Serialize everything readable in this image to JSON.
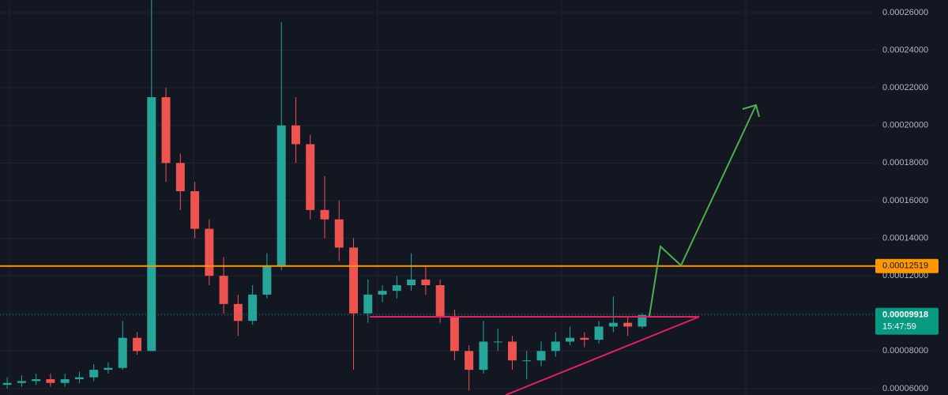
{
  "chart_data": {
    "type": "candlestick",
    "up_color": "#26a69a",
    "down_color": "#ef5350",
    "grid": true,
    "open": [
      6.2e-05,
      6.3e-05,
      6.4e-05,
      6.5e-05,
      6.3e-05,
      6.5e-05,
      6.6e-05,
      7e-05,
      7.1e-05,
      8.7e-05,
      8e-05,
      0.000215,
      0.00018,
      0.000165,
      0.000145,
      0.00012,
      0.000105,
      9.6e-05,
      0.00011,
      0.000125,
      0.0002,
      0.00019,
      0.000155,
      0.00015,
      0.000135,
      0.0001,
      0.00011,
      0.000112,
      0.000115,
      0.000118,
      0.000115,
      9.8e-05,
      8e-05,
      7e-05,
      8.5e-05,
      8.5e-05,
      7.5e-05,
      7.5e-05,
      8e-05,
      8.5e-05,
      8.7e-05,
      8.6e-05,
      9.3e-05,
      9.5e-05,
      9.3e-05
    ],
    "high": [
      6.6e-05,
      6.7e-05,
      6.8e-05,
      6.8e-05,
      6.8e-05,
      6.9e-05,
      7.3e-05,
      7.4e-05,
      9.6e-05,
      9e-05,
      0.000267,
      0.00022,
      0.000185,
      0.00017,
      0.00015,
      0.00013,
      0.00011,
      0.000115,
      0.000132,
      0.000255,
      0.000215,
      0.000195,
      0.000173,
      0.00016,
      0.00014,
      0.000118,
      0.000115,
      0.00012,
      0.000132,
      0.000125,
      0.000118,
      0.000102,
      8.3e-05,
      9.6e-05,
      9.2e-05,
      8.8e-05,
      8e-05,
      8.5e-05,
      9e-05,
      9.3e-05,
      9e-05,
      9.6e-05,
      0.000109,
      9.8e-05,
      0.0001
    ],
    "low": [
      6e-05,
      6.1e-05,
      6.2e-05,
      6.1e-05,
      6.1e-05,
      6.3e-05,
      6.4e-05,
      6.8e-05,
      7e-05,
      7.8e-05,
      8e-05,
      0.00017,
      0.000155,
      0.00014,
      0.000115,
      0.0001,
      8.8e-05,
      9.4e-05,
      0.000108,
      0.000123,
      0.00018,
      0.00015,
      0.00014,
      0.000128,
      7e-05,
      9.5e-05,
      0.000106,
      0.000108,
      0.000112,
      0.00011,
      9.5e-05,
      7.5e-05,
      5.9e-05,
      6.8e-05,
      8e-05,
      7e-05,
      6.5e-05,
      7.2e-05,
      7.7e-05,
      8.3e-05,
      8.2e-05,
      8.4e-05,
      9e-05,
      8.8e-05,
      9.2e-05
    ],
    "close": [
      6.3e-05,
      6.4e-05,
      6.5e-05,
      6.3e-05,
      6.5e-05,
      6.6e-05,
      7e-05,
      7.1e-05,
      8.7e-05,
      8e-05,
      0.000215,
      0.00018,
      0.000165,
      0.000145,
      0.00012,
      0.000105,
      9.6e-05,
      0.00011,
      0.000125,
      0.0002,
      0.00019,
      0.000155,
      0.00015,
      0.000135,
      0.0001,
      0.00011,
      0.000112,
      0.000115,
      0.000118,
      0.000115,
      9.8e-05,
      8e-05,
      7e-05,
      8.5e-05,
      8.5e-05,
      7.5e-05,
      7.5e-05,
      8e-05,
      8.5e-05,
      8.7e-05,
      8.6e-05,
      9.3e-05,
      9.5e-05,
      9.3e-05,
      9.918e-05
    ],
    "ylim": [
      5.66e-05,
      0.0002667
    ],
    "yticks": [
      {
        "value": 6e-05,
        "label": "0.00006000"
      },
      {
        "value": 8e-05,
        "label": "0.00008000"
      },
      {
        "value": 0.0001,
        "label": "0.00010000"
      },
      {
        "value": 0.00012,
        "label": "0.00012000"
      },
      {
        "value": 0.00014,
        "label": "0.00014000"
      },
      {
        "value": 0.00016,
        "label": "0.00016000"
      },
      {
        "value": 0.00018,
        "label": "0.00018000"
      },
      {
        "value": 0.0002,
        "label": "0.00020000"
      },
      {
        "value": 0.00022,
        "label": "0.00022000"
      },
      {
        "value": 0.00024,
        "label": "0.00024000"
      },
      {
        "value": 0.00026,
        "label": "0.00026000"
      }
    ],
    "level": {
      "value": 0.00012519,
      "label": "0.00012519",
      "color": "#ff9800"
    },
    "last_price": {
      "value": 9.918e-05,
      "label": "0.00009918",
      "timer": "15:47:59",
      "color": "#089981"
    }
  }
}
